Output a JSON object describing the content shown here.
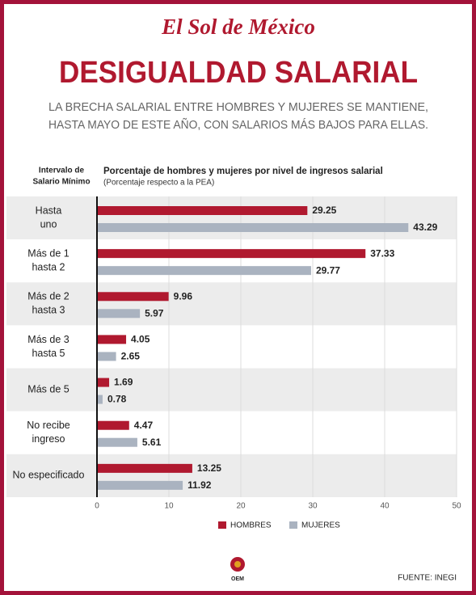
{
  "logo": "El Sol de México",
  "chart_data": {
    "type": "hbar",
    "title": "DESIGUALDAD SALARIAL",
    "subtitle": [
      "LA BRECHA SALARIAL ENTRE HOMBRES Y MUJERES SE MANTIENE,",
      "HASTA MAYO DE ESTE AÑO, CON SALARIOS MÁS BAJOS PARA ELLAS."
    ],
    "category_axis_label": [
      "Intervalo de",
      "Salario Mínimo"
    ],
    "chart_title": "Porcentaje de hombres y mujeres por nivel de ingresos salarial",
    "chart_subtitle": "(Porcentaje respecto a la PEA)",
    "categories": [
      [
        "Hasta",
        "uno"
      ],
      [
        "Más de 1",
        "hasta 2"
      ],
      [
        "Más de 2",
        "hasta 3"
      ],
      [
        "Más de 3",
        "hasta 5"
      ],
      [
        "Más de 5"
      ],
      [
        "No recibe",
        "ingreso"
      ],
      [
        "No especificado"
      ]
    ],
    "series": [
      {
        "name": "HOMBRES",
        "color": "#b0192f",
        "values": [
          29.25,
          37.33,
          9.96,
          4.05,
          1.69,
          4.47,
          13.25
        ]
      },
      {
        "name": "MUJERES",
        "color": "#aab3c0",
        "values": [
          43.29,
          29.77,
          5.97,
          2.65,
          0.78,
          5.61,
          11.92
        ]
      }
    ],
    "xlim": [
      0,
      50
    ],
    "xticks": [
      0,
      10,
      20,
      30,
      40,
      50
    ],
    "grid": true,
    "source": "FUENTE: INEGI"
  },
  "footer_logo": "OEM"
}
